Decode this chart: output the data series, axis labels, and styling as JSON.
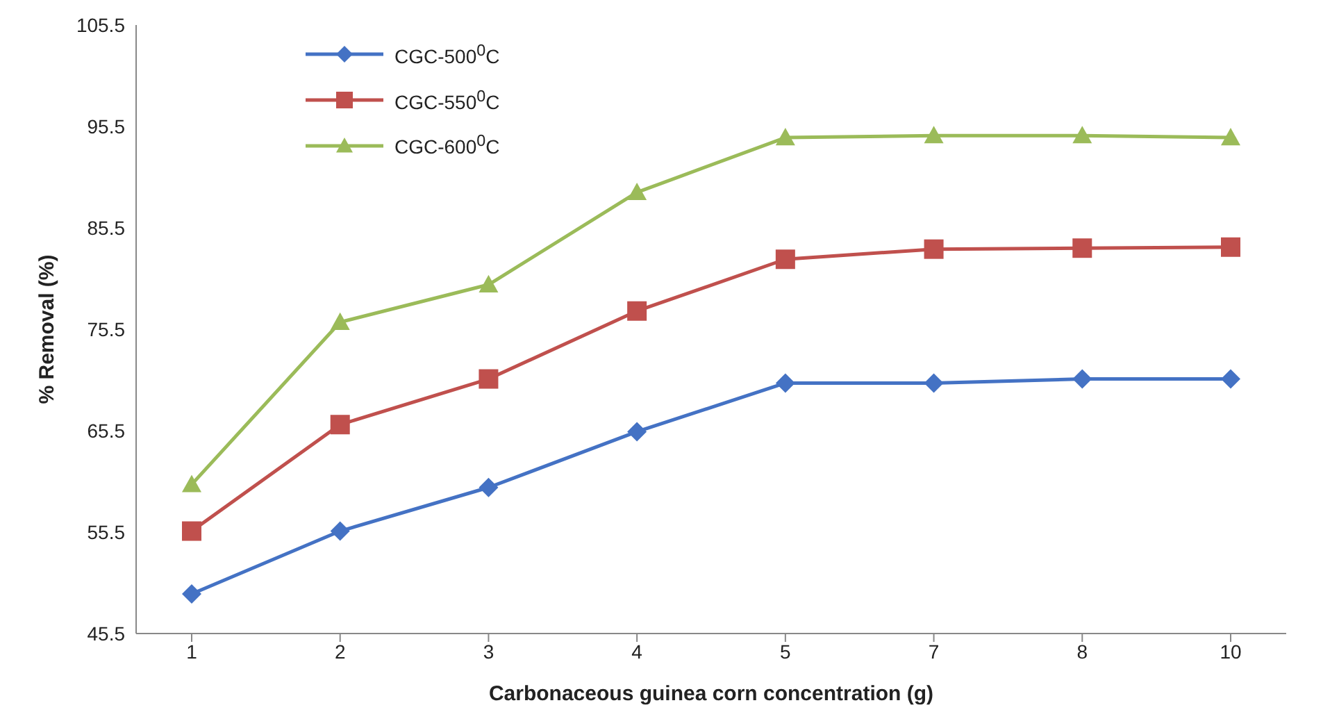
{
  "chart_data": {
    "type": "line",
    "xlabel": "Carbonaceous guinea corn concentration (g)",
    "ylabel": "% Removal (%)",
    "categories": [
      "1",
      "2",
      "3",
      "4",
      "5",
      "7",
      "8",
      "10"
    ],
    "series": [
      {
        "name": "CGC-500$^{0}$C",
        "color": "#4472c4",
        "marker": "diamond",
        "values": [
          49.4,
          55.6,
          59.9,
          65.4,
          70.2,
          70.2,
          70.6,
          70.6
        ]
      },
      {
        "name": "CGC-550$^{0}$C",
        "color": "#c0504d",
        "marker": "square",
        "values": [
          55.6,
          66.1,
          70.6,
          77.3,
          82.4,
          83.4,
          83.5,
          83.6
        ]
      },
      {
        "name": "CGC-600$^{0}$C",
        "color": "#9bbb59",
        "marker": "triangle",
        "values": [
          60.2,
          76.2,
          79.9,
          89.0,
          94.4,
          94.6,
          94.6,
          94.4
        ]
      }
    ],
    "ylim": [
      45.5,
      105.5
    ],
    "yticks": [
      45.5,
      55.5,
      65.5,
      75.5,
      85.5,
      95.5,
      105.5
    ],
    "grid": false,
    "legend": "top left"
  }
}
